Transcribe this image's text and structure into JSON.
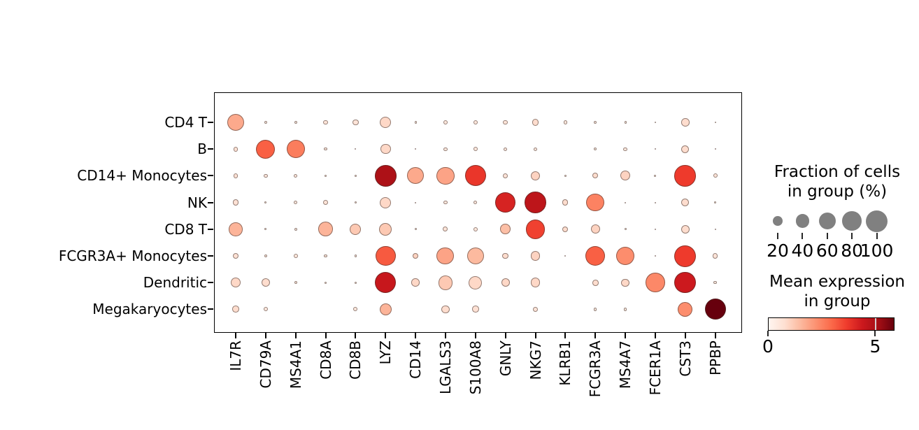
{
  "chart_data": {
    "type": "dotplot",
    "title": "",
    "x_categories": [
      "IL7R",
      "CD79A",
      "MS4A1",
      "CD8A",
      "CD8B",
      "LYZ",
      "CD14",
      "LGALS3",
      "S100A8",
      "GNLY",
      "NKG7",
      "KLRB1",
      "FCGR3A",
      "MS4A7",
      "FCER1A",
      "CST3",
      "PPBP"
    ],
    "y_categories": [
      "CD4 T",
      "B",
      "CD14+ Monocytes",
      "NK",
      "CD8 T",
      "FCGR3A+ Monocytes",
      "Dendritic",
      "Megakaryocytes"
    ],
    "series": [
      {
        "name": "CD4 T",
        "fraction": [
          65,
          2,
          2,
          5,
          8,
          28,
          1,
          4,
          4,
          5,
          10,
          3,
          2,
          1,
          0.3,
          14,
          0.4
        ],
        "mean_expression": [
          1.8,
          0.4,
          0.4,
          0.6,
          0.6,
          0.9,
          0.4,
          0.5,
          0.5,
          0.6,
          0.8,
          0.5,
          0.4,
          0.4,
          0.3,
          0.8,
          0.3
        ]
      },
      {
        "name": "B",
        "fraction": [
          5,
          76,
          70,
          2,
          0.4,
          22,
          0.3,
          3,
          4,
          3,
          3,
          0,
          2,
          3,
          0.3,
          13,
          0.4
        ],
        "mean_expression": [
          0.7,
          3.1,
          2.6,
          0.5,
          0.3,
          0.9,
          0.3,
          0.5,
          0.5,
          0.5,
          0.5,
          0,
          0.4,
          0.5,
          0.3,
          0.8,
          0.3
        ]
      },
      {
        "name": "CD14+ Monocytes",
        "fraction": [
          5,
          3,
          3,
          1,
          1,
          98,
          60,
          68,
          95,
          5,
          18,
          1,
          7,
          20,
          1,
          97,
          4
        ],
        "mean_expression": [
          0.7,
          0.5,
          0.5,
          0.4,
          0.4,
          5.0,
          1.8,
          1.9,
          3.8,
          0.6,
          1.0,
          0.4,
          0.8,
          1.0,
          0.4,
          3.7,
          0.6
        ]
      },
      {
        "name": "NK",
        "fraction": [
          8,
          1,
          3,
          5,
          1,
          27,
          0.4,
          3,
          3,
          85,
          97,
          7,
          68,
          0.4,
          0.3,
          13,
          1
        ],
        "mean_expression": [
          0.7,
          0.4,
          0.5,
          0.6,
          0.4,
          0.9,
          0.3,
          0.5,
          0.5,
          4.2,
          4.7,
          0.8,
          2.5,
          0.3,
          0.3,
          0.8,
          0.4
        ]
      },
      {
        "name": "CD8 T",
        "fraction": [
          40,
          1,
          2,
          45,
          27,
          35,
          1,
          5,
          4,
          23,
          80,
          7,
          18,
          1,
          0.4,
          15,
          0.4
        ],
        "mean_expression": [
          1.6,
          0.4,
          0.4,
          1.6,
          1.2,
          1.2,
          0.4,
          0.6,
          0.5,
          1.4,
          3.6,
          0.8,
          1.0,
          0.4,
          0.3,
          0.8,
          0.3
        ]
      },
      {
        "name": "FCGR3A+ Monocytes",
        "fraction": [
          7,
          2,
          4,
          2,
          1,
          85,
          8,
          65,
          60,
          8,
          20,
          0.4,
          85,
          75,
          0.4,
          100,
          6
        ],
        "mean_expression": [
          0.7,
          0.5,
          0.5,
          0.5,
          0.4,
          3.2,
          1.0,
          1.9,
          1.5,
          0.8,
          1.0,
          0.3,
          3.1,
          2.3,
          0.3,
          3.7,
          0.6
        ]
      },
      {
        "name": "Dendritic",
        "fraction": [
          20,
          15,
          2,
          1,
          1,
          95,
          14,
          45,
          38,
          15,
          20,
          0,
          8,
          13,
          80,
          97,
          2
        ],
        "mean_expression": [
          0.9,
          0.8,
          0.5,
          0.4,
          0.4,
          4.5,
          0.9,
          1.2,
          0.9,
          0.9,
          0.9,
          0,
          0.8,
          0.9,
          2.4,
          4.4,
          0.4
        ]
      },
      {
        "name": "Megakaryocytes",
        "fraction": [
          10,
          4,
          0,
          0,
          4,
          30,
          0,
          13,
          10,
          0,
          5,
          0,
          2,
          2,
          0,
          46,
          93
        ],
        "mean_expression": [
          0.8,
          0.5,
          0,
          0,
          0.5,
          1.6,
          0,
          0.8,
          0.7,
          0,
          0.6,
          0,
          0.4,
          0.4,
          0,
          2.3,
          5.9
        ]
      }
    ],
    "size_legend": {
      "title_line1": "Fraction of cells",
      "title_line2": "in group (%)",
      "values": [
        20,
        40,
        60,
        80,
        100
      ],
      "dot_color": "#808080"
    },
    "color_legend": {
      "title_line1": "Mean expression",
      "title_line2": "in group",
      "tick_labels": [
        "0",
        "5"
      ],
      "vmin": 0,
      "vmax": 5.9,
      "colormap": "Reds",
      "colormap_stops": [
        "#fff5f0",
        "#fee0d2",
        "#fcbba1",
        "#fc9272",
        "#fb6a4a",
        "#ef3b2c",
        "#cb181d",
        "#a50f15",
        "#67000d"
      ]
    }
  }
}
